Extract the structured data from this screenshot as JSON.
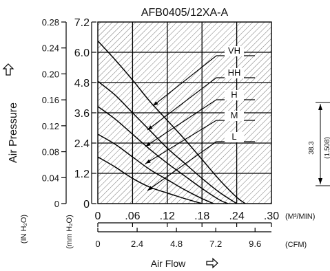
{
  "chart_data": {
    "type": "line",
    "title": "AFB0405/12XA-A",
    "xlabel": "Air Flow",
    "ylabel": "Air Pressure",
    "x_unit": "(M³/MIN)",
    "x2_unit": "(CFM)",
    "y_unit": "(IN H₂O)",
    "y2_unit": "(mm H₂O)",
    "xlim": [
      0,
      0.3
    ],
    "ylim": [
      0,
      7.2
    ],
    "x_ticks": [
      "0",
      ".06",
      ".12",
      ".18",
      ".24",
      ".30"
    ],
    "x2_ticks": [
      "0",
      "2.4",
      "4.8",
      "7.2",
      "9.6"
    ],
    "y_ticks": [
      "0",
      "1.2",
      "2.4",
      "3.6",
      "4.8",
      "6.0",
      "7.2"
    ],
    "y2_ticks": [
      "0",
      "0.04",
      "0.08",
      "0.12",
      "0.16",
      "0.20",
      "0.24",
      "0.28"
    ],
    "grid": true,
    "series": [
      {
        "name": "VH",
        "x": [
          0,
          0.03,
          0.06,
          0.09,
          0.12,
          0.15,
          0.18,
          0.21,
          0.24,
          0.255
        ],
        "y": [
          6.45,
          5.7,
          4.9,
          4.05,
          3.3,
          2.55,
          1.75,
          0.95,
          0.25,
          0
        ]
      },
      {
        "name": "HH",
        "x": [
          0,
          0.03,
          0.06,
          0.09,
          0.12,
          0.15,
          0.18,
          0.21,
          0.24
        ],
        "y": [
          4.85,
          4.3,
          3.6,
          2.9,
          2.2,
          1.6,
          1.0,
          0.45,
          0
        ]
      },
      {
        "name": "H",
        "x": [
          0,
          0.03,
          0.06,
          0.09,
          0.12,
          0.15,
          0.18,
          0.21,
          0.225
        ],
        "y": [
          3.85,
          3.35,
          2.75,
          2.15,
          1.6,
          1.1,
          0.6,
          0.15,
          0
        ]
      },
      {
        "name": "M",
        "x": [
          0,
          0.03,
          0.06,
          0.09,
          0.12,
          0.15,
          0.18,
          0.2
        ],
        "y": [
          2.75,
          2.35,
          1.85,
          1.35,
          0.95,
          0.55,
          0.2,
          0
        ]
      },
      {
        "name": "L",
        "x": [
          0,
          0.03,
          0.06,
          0.09,
          0.12,
          0.15,
          0.18
        ],
        "y": [
          1.85,
          1.45,
          1.0,
          0.65,
          0.42,
          0.2,
          0
        ]
      }
    ],
    "side_dimension": {
      "value": "38.3",
      "alt": "(1.508)"
    }
  }
}
